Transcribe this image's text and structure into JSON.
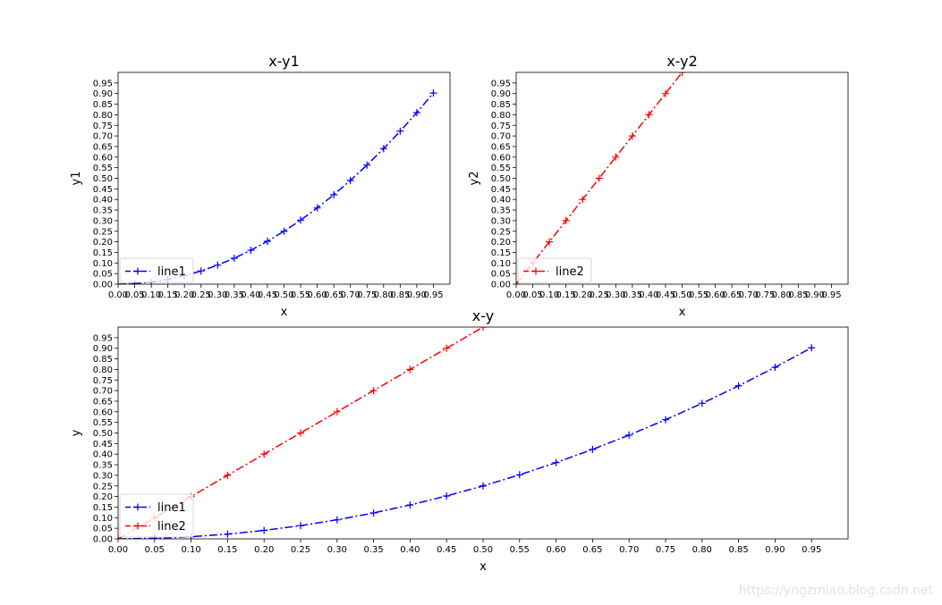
{
  "watermark": "https://yngzmiao.blog.csdn.net",
  "colors": {
    "line1": "#0000ff",
    "line2": "#ff0000"
  },
  "chart_data": [
    {
      "type": "line",
      "title": "x-y1",
      "xlabel": "x",
      "ylabel": "y1",
      "xlim": [
        0,
        1.0
      ],
      "ylim": [
        0,
        1.0
      ],
      "xticks": [
        "0.00",
        "0.05",
        "0.10",
        "0.15",
        "0.20",
        "0.25",
        "0.30",
        "0.35",
        "0.40",
        "0.45",
        "0.50",
        "0.55",
        "0.60",
        "0.65",
        "0.70",
        "0.75",
        "0.80",
        "0.85",
        "0.90",
        "0.95"
      ],
      "yticks": [
        "0.00",
        "0.05",
        "0.10",
        "0.15",
        "0.20",
        "0.25",
        "0.30",
        "0.35",
        "0.40",
        "0.45",
        "0.50",
        "0.55",
        "0.60",
        "0.65",
        "0.70",
        "0.75",
        "0.80",
        "0.85",
        "0.90",
        "0.95"
      ],
      "legend_position": "lower-left",
      "series": [
        {
          "name": "line1",
          "color": "#0000ff",
          "x": [
            0,
            0.05,
            0.1,
            0.15,
            0.2,
            0.25,
            0.3,
            0.35,
            0.4,
            0.45,
            0.5,
            0.55,
            0.6,
            0.65,
            0.7,
            0.75,
            0.8,
            0.85,
            0.9,
            0.95
          ],
          "y": [
            0,
            0.0025,
            0.01,
            0.0225,
            0.04,
            0.0625,
            0.09,
            0.1225,
            0.16,
            0.2025,
            0.25,
            0.3025,
            0.36,
            0.4225,
            0.49,
            0.5625,
            0.64,
            0.7225,
            0.81,
            0.9025
          ]
        }
      ]
    },
    {
      "type": "line",
      "title": "x-y2",
      "xlabel": "x",
      "ylabel": "y2",
      "xlim": [
        0,
        1.0
      ],
      "ylim": [
        0,
        1.0
      ],
      "xticks": [
        "0.00",
        "0.05",
        "0.10",
        "0.15",
        "0.20",
        "0.25",
        "0.30",
        "0.35",
        "0.40",
        "0.45",
        "0.50",
        "0.55",
        "0.60",
        "0.65",
        "0.70",
        "0.75",
        "0.80",
        "0.85",
        "0.90",
        "0.95"
      ],
      "yticks": [
        "0.00",
        "0.05",
        "0.10",
        "0.15",
        "0.20",
        "0.25",
        "0.30",
        "0.35",
        "0.40",
        "0.45",
        "0.50",
        "0.55",
        "0.60",
        "0.65",
        "0.70",
        "0.75",
        "0.80",
        "0.85",
        "0.90",
        "0.95"
      ],
      "legend_position": "lower-left",
      "series": [
        {
          "name": "line2",
          "color": "#ff0000",
          "x": [
            0,
            0.05,
            0.1,
            0.15,
            0.2,
            0.25,
            0.3,
            0.35,
            0.4,
            0.45,
            0.5
          ],
          "y": [
            0,
            0.1,
            0.2,
            0.3,
            0.4,
            0.5,
            0.6,
            0.7,
            0.8,
            0.9,
            1.0
          ]
        }
      ]
    },
    {
      "type": "line",
      "title": "x-y",
      "xlabel": "x",
      "ylabel": "y",
      "xlim": [
        0,
        1.0
      ],
      "ylim": [
        0,
        1.0
      ],
      "xticks": [
        "0.00",
        "0.05",
        "0.10",
        "0.15",
        "0.20",
        "0.25",
        "0.30",
        "0.35",
        "0.40",
        "0.45",
        "0.50",
        "0.55",
        "0.60",
        "0.65",
        "0.70",
        "0.75",
        "0.80",
        "0.85",
        "0.90",
        "0.95"
      ],
      "yticks": [
        "0.00",
        "0.05",
        "0.10",
        "0.15",
        "0.20",
        "0.25",
        "0.30",
        "0.35",
        "0.40",
        "0.45",
        "0.50",
        "0.55",
        "0.60",
        "0.65",
        "0.70",
        "0.75",
        "0.80",
        "0.85",
        "0.90",
        "0.95"
      ],
      "legend_position": "lower-left",
      "series": [
        {
          "name": "line1",
          "color": "#0000ff",
          "x": [
            0,
            0.05,
            0.1,
            0.15,
            0.2,
            0.25,
            0.3,
            0.35,
            0.4,
            0.45,
            0.5,
            0.55,
            0.6,
            0.65,
            0.7,
            0.75,
            0.8,
            0.85,
            0.9,
            0.95
          ],
          "y": [
            0,
            0.0025,
            0.01,
            0.0225,
            0.04,
            0.0625,
            0.09,
            0.1225,
            0.16,
            0.2025,
            0.25,
            0.3025,
            0.36,
            0.4225,
            0.49,
            0.5625,
            0.64,
            0.7225,
            0.81,
            0.9025
          ]
        },
        {
          "name": "line2",
          "color": "#ff0000",
          "x": [
            0,
            0.05,
            0.1,
            0.15,
            0.2,
            0.25,
            0.3,
            0.35,
            0.4,
            0.45,
            0.5
          ],
          "y": [
            0,
            0.1,
            0.2,
            0.3,
            0.4,
            0.5,
            0.6,
            0.7,
            0.8,
            0.9,
            1.0
          ]
        }
      ]
    }
  ]
}
